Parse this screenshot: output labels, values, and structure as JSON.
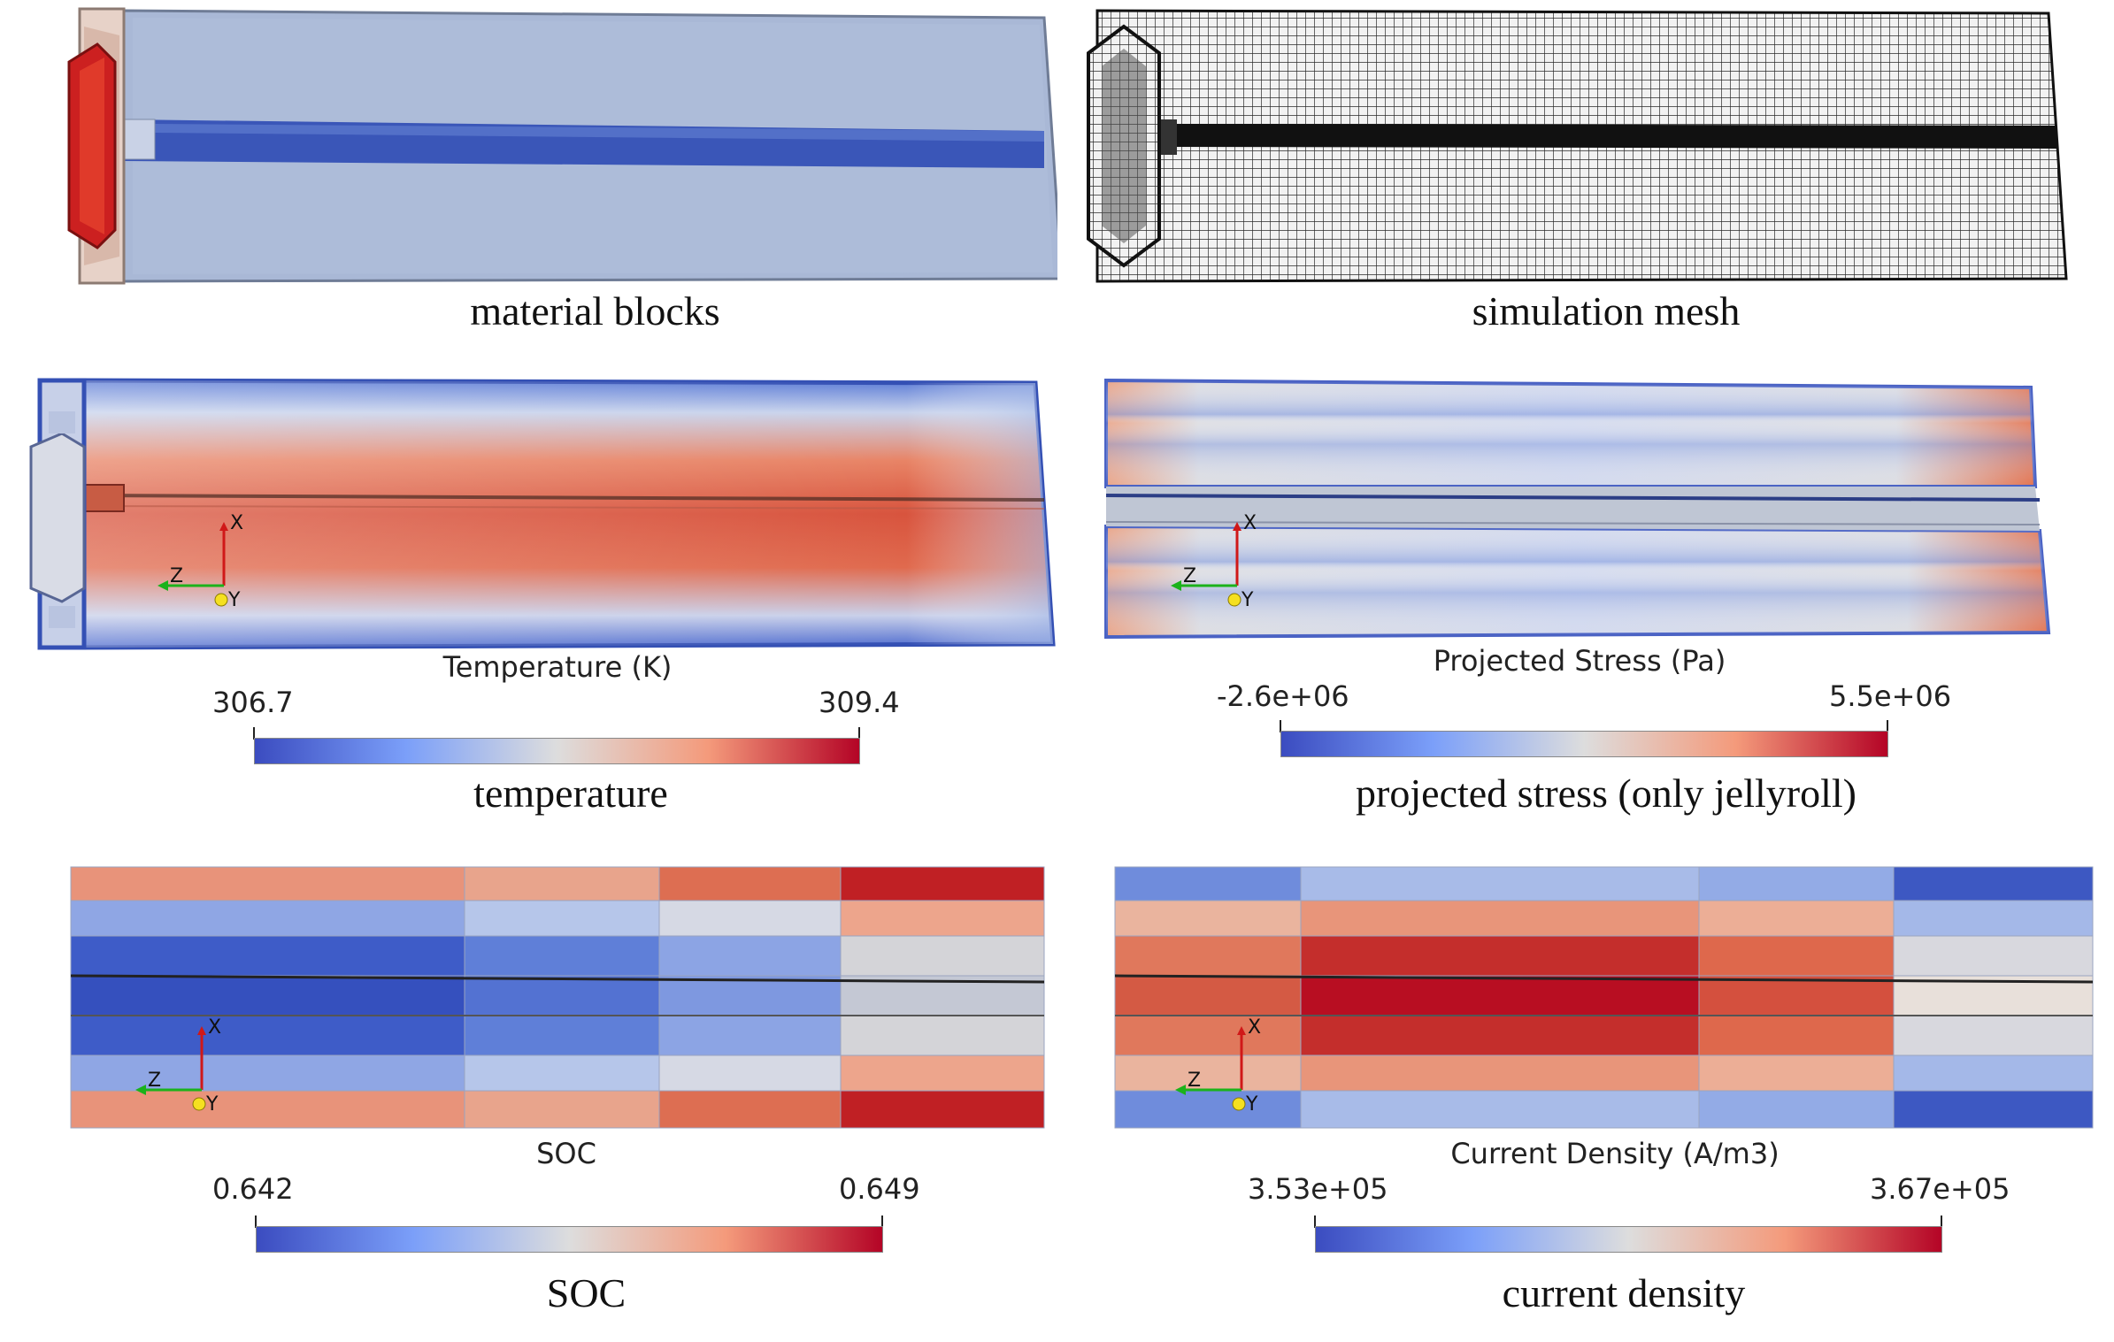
{
  "panels": {
    "material": {
      "caption": "material blocks"
    },
    "mesh": {
      "caption": "simulation mesh"
    },
    "temperature": {
      "caption": "temperature",
      "colorbar_title": "Temperature (K)",
      "min": "306.7",
      "max": "309.4"
    },
    "stress": {
      "caption": "projected stress (only jellyroll)",
      "colorbar_title": "Projected Stress (Pa)",
      "min": "-2.6e+06",
      "max": "5.5e+06"
    },
    "soc": {
      "caption": "SOC",
      "colorbar_title": "SOC",
      "min": "0.642",
      "max": "0.649"
    },
    "current": {
      "caption": "current density",
      "colorbar_title": "Current Density (A/m3)",
      "min": "3.53e+05",
      "max": "3.67e+05"
    }
  },
  "axes_labels": {
    "x": "X",
    "y": "Y",
    "z": "Z"
  },
  "colormap": [
    "#3b4cc0",
    "#7b9ff9",
    "#dddddd",
    "#f49a7b",
    "#b40426"
  ]
}
